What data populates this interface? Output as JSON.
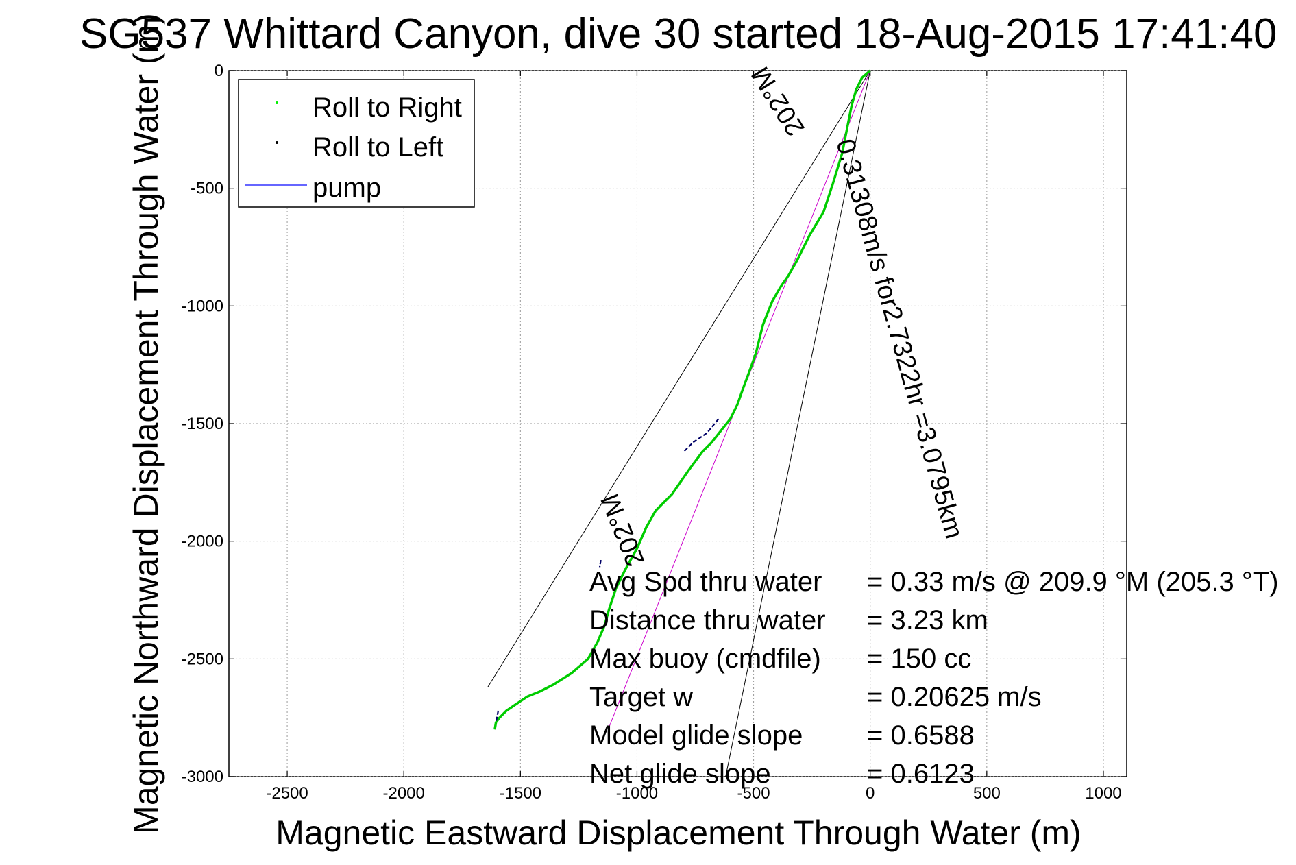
{
  "chart_data": {
    "type": "line",
    "title": "SG537 Whittard Canyon, dive 30 started 18-Aug-2015 17:41:40",
    "xlabel": "Magnetic Eastward Displacement Through Water (m)",
    "ylabel": "Magnetic Northward Displacement Through Water (m)",
    "xlim": [
      -2750,
      1100
    ],
    "ylim": [
      -3000,
      0
    ],
    "xticks": [
      -2500,
      -2000,
      -1500,
      -1000,
      -500,
      0,
      500,
      1000
    ],
    "yticks": [
      0,
      -500,
      -1000,
      -1500,
      -2000,
      -2500,
      -3000
    ],
    "xtick_labels": [
      "-2500",
      "-2000",
      "-1500",
      "-1000",
      "-500",
      "0",
      "500",
      "1000"
    ],
    "ytick_labels": [
      "0",
      "-500",
      "-1000",
      "-1500",
      "-2000",
      "-2500",
      "-3000"
    ],
    "grid": true,
    "legend_placement": "top-left",
    "legend": [
      {
        "label": "Roll to Right",
        "color": "#00ee00",
        "marker": "point"
      },
      {
        "label": "Roll to Left",
        "color": "#000000",
        "marker": "point"
      },
      {
        "label": "pump",
        "color": "#3333ff",
        "marker": "line"
      }
    ],
    "series": [
      {
        "name": "Roll to Right",
        "color": "#00cc00",
        "x": [
          0,
          -35,
          -60,
          -80,
          -100,
          -120,
          -160,
          -200,
          -260,
          -310,
          -350,
          -385,
          -420,
          -460,
          -490,
          -515,
          -545,
          -570,
          -600,
          -640,
          -680,
          -720,
          -780,
          -850,
          -920,
          -960,
          -1000,
          -1050,
          -1090,
          -1120,
          -1140,
          -1170,
          -1210,
          -1280,
          -1360,
          -1420,
          -1470,
          -1500,
          -1530,
          -1560,
          -1590,
          -1605,
          -1610
        ],
        "y": [
          0,
          -30,
          -80,
          -150,
          -250,
          -350,
          -480,
          -600,
          -700,
          -800,
          -870,
          -920,
          -980,
          -1080,
          -1200,
          -1270,
          -1350,
          -1420,
          -1480,
          -1530,
          -1580,
          -1620,
          -1700,
          -1800,
          -1870,
          -1940,
          -2030,
          -2120,
          -2200,
          -2290,
          -2360,
          -2430,
          -2500,
          -2560,
          -2610,
          -2640,
          -2660,
          -2680,
          -2700,
          -2720,
          -2750,
          -2770,
          -2800
        ]
      }
    ],
    "roll_left_segments": [
      {
        "x": [
          -650,
          -700,
          -760,
          -800
        ],
        "y": [
          -1480,
          -1540,
          -1580,
          -1620
        ]
      },
      {
        "x": [
          -1155,
          -1160
        ],
        "y": [
          -2080,
          -2110
        ]
      },
      {
        "x": [
          -1595,
          -1605
        ],
        "y": [
          -2720,
          -2770
        ]
      }
    ],
    "heading_lines": [
      {
        "label": "202°M",
        "x": [
          0,
          -1640
        ],
        "y": [
          0,
          -2620
        ]
      },
      {
        "label": "202°M",
        "x": [
          0,
          -1120
        ],
        "y": [
          0,
          -2790
        ],
        "color": "#cc00cc"
      },
      {
        "label": "",
        "x": [
          0,
          -620
        ],
        "y": [
          0,
          -3000
        ]
      }
    ],
    "annotation": "0.31308m/s for2.7322hr =3.0795km",
    "stats": [
      {
        "label": "Avg Spd thru water",
        "value": "=  0.33 m/s @ 209.9 °M (205.3 °T)"
      },
      {
        "label": "Distance thru water",
        "value": "=  3.23 km"
      },
      {
        "label": "Max buoy (cmdfile)",
        "value": "= 150 cc"
      },
      {
        "label": "Target w",
        "value": "= 0.20625 m/s"
      },
      {
        "label": "Model glide slope",
        "value": "= 0.6588"
      },
      {
        "label": "Net glide slope",
        "value": "= 0.6123"
      }
    ]
  }
}
